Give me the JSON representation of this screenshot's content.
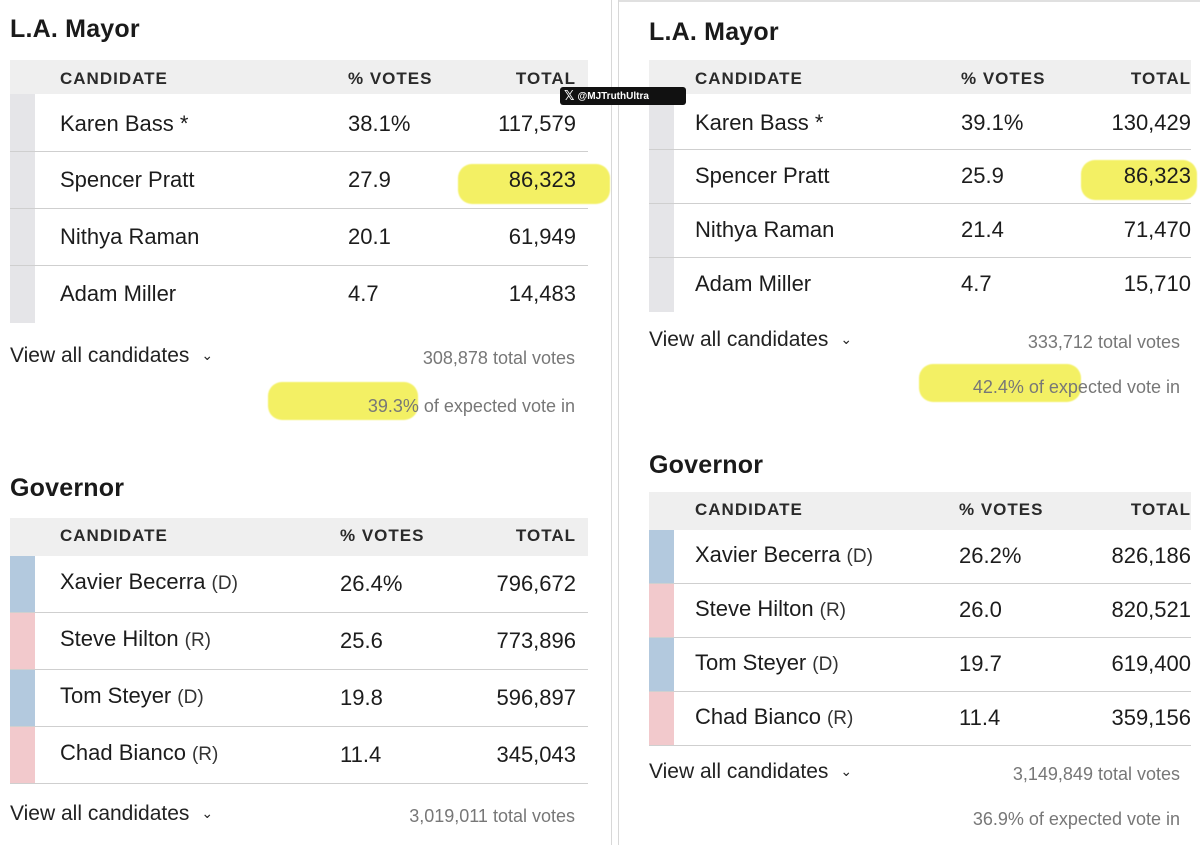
{
  "watermark": {
    "handle": "@MJTruthUltra",
    "icon": "x-logo-icon"
  },
  "left": {
    "mayor": {
      "title": "L.A. Mayor",
      "headers": {
        "candidate": "CANDIDATE",
        "pct": "% VOTES",
        "total": "TOTAL"
      },
      "rows": [
        {
          "name": "Karen Bass *",
          "party": "",
          "pct": "38.1%",
          "total": "117,579"
        },
        {
          "name": "Spencer Pratt",
          "party": "",
          "pct": "27.9",
          "total": "86,323"
        },
        {
          "name": "Nithya Raman",
          "party": "",
          "pct": "20.1",
          "total": "61,949"
        },
        {
          "name": "Adam Miller",
          "party": "",
          "pct": "4.7",
          "total": "14,483"
        }
      ],
      "view_all": "View all candidates",
      "total_votes": "308,878 total votes",
      "expected": "39.3% of expected vote in"
    },
    "governor": {
      "title": "Governor",
      "headers": {
        "candidate": "CANDIDATE",
        "pct": "% VOTES",
        "total": "TOTAL"
      },
      "rows": [
        {
          "name": "Xavier Becerra",
          "party": "(D)",
          "pct": "26.4%",
          "total": "796,672"
        },
        {
          "name": "Steve Hilton",
          "party": "(R)",
          "pct": "25.6",
          "total": "773,896"
        },
        {
          "name": "Tom Steyer",
          "party": "(D)",
          "pct": "19.8",
          "total": "596,897"
        },
        {
          "name": "Chad Bianco",
          "party": "(R)",
          "pct": "11.4",
          "total": "345,043"
        }
      ],
      "view_all": "View all candidates",
      "total_votes": "3,019,011 total votes"
    }
  },
  "right": {
    "mayor": {
      "title": "L.A. Mayor",
      "headers": {
        "candidate": "CANDIDATE",
        "pct": "% VOTES",
        "total": "TOTAL"
      },
      "rows": [
        {
          "name": "Karen Bass *",
          "party": "",
          "pct": "39.1%",
          "total": "130,429"
        },
        {
          "name": "Spencer Pratt",
          "party": "",
          "pct": "25.9",
          "total": "86,323"
        },
        {
          "name": "Nithya Raman",
          "party": "",
          "pct": "21.4",
          "total": "71,470"
        },
        {
          "name": "Adam Miller",
          "party": "",
          "pct": "4.7",
          "total": "15,710"
        }
      ],
      "view_all": "View all candidates",
      "total_votes": "333,712 total votes",
      "expected": "42.4% of expected vote in"
    },
    "governor": {
      "title": "Governor",
      "headers": {
        "candidate": "CANDIDATE",
        "pct": "% VOTES",
        "total": "TOTAL"
      },
      "rows": [
        {
          "name": "Xavier Becerra",
          "party": "(D)",
          "pct": "26.2%",
          "total": "826,186"
        },
        {
          "name": "Steve Hilton",
          "party": "(R)",
          "pct": "26.0",
          "total": "820,521"
        },
        {
          "name": "Tom Steyer",
          "party": "(D)",
          "pct": "19.7",
          "total": "619,400"
        },
        {
          "name": "Chad Bianco",
          "party": "(R)",
          "pct": "11.4",
          "total": "359,156"
        }
      ],
      "view_all": "View all candidates",
      "total_votes": "3,149,849 total votes",
      "expected": "36.9% of expected vote in"
    }
  },
  "colors": {
    "dem": "#b3c9de",
    "rep": "#f2c9cc",
    "neutral": "#e5e5e8",
    "highlight": "#f3f05c"
  }
}
